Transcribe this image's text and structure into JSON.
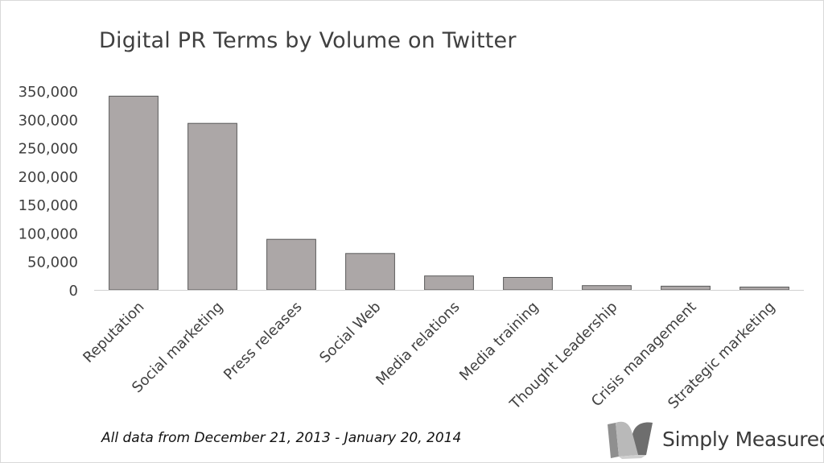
{
  "chart_data": {
    "type": "bar",
    "title": "Digital PR Terms by Volume on Twitter",
    "categories": [
      "Reputation",
      "Social marketing",
      "Press releases",
      "Social Web",
      "Media relations",
      "Media training",
      "Thought Leadership",
      "Crisis management",
      "Strategic marketing"
    ],
    "values": [
      341000,
      293000,
      89000,
      64000,
      24500,
      22000,
      7500,
      6500,
      5000
    ],
    "yticks": [
      "0",
      "50,000",
      "100,000",
      "150,000",
      "200,000",
      "250,000",
      "300,000",
      "350,000"
    ],
    "ylim": [
      0,
      350000
    ],
    "xlabel": "",
    "ylabel": "",
    "grid": false,
    "legend": "none",
    "bar_color": "#aca7a7",
    "bar_edge_color": "#5a5a5a"
  },
  "footnote": "All data from December 21, 2013 - January 20, 2014",
  "brand": {
    "name": "Simply Measured",
    "icon": "simply-measured-logo-icon"
  }
}
